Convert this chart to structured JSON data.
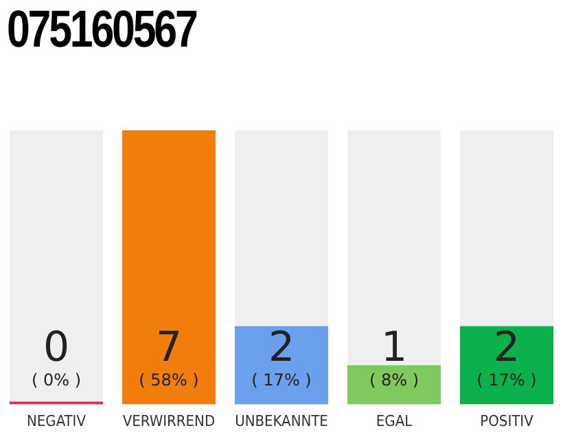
{
  "chart_data": {
    "type": "bar",
    "title": "075160567",
    "categories": [
      "NEGATIV",
      "VERWIRREND",
      "UNBEKANNTE",
      "EGAL",
      "POSITIV"
    ],
    "values": [
      0,
      7,
      2,
      1,
      2
    ],
    "colors": [
      "#e8294a",
      "#f07d0c",
      "#6aa0ec",
      "#80c95e",
      "#0db14b"
    ],
    "data_labels": true,
    "annotations": [
      "( 0% )",
      "( 58% )",
      "( 17% )",
      "( 8% )",
      "( 17% )"
    ],
    "legend": false,
    "grid": false
  }
}
